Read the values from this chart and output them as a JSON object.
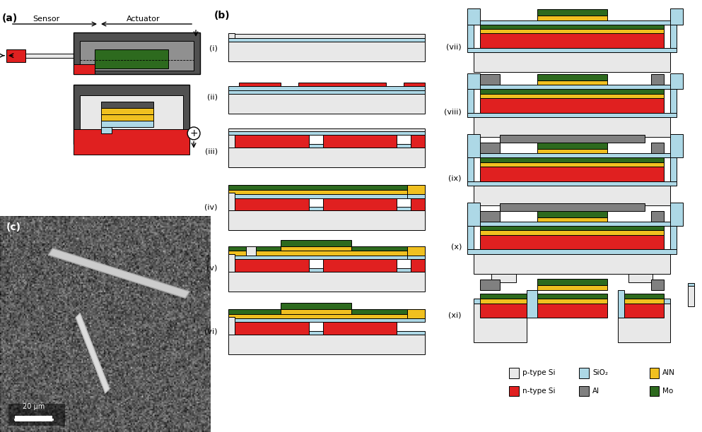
{
  "colors": {
    "p_si": "#e8e8e8",
    "n_si": "#e02020",
    "sio2": "#add8e6",
    "aln": "#f0c020",
    "al": "#808080",
    "mo": "#2d6a1e",
    "white": "#ffffff",
    "outline": "#000000",
    "dark_gray": "#505050",
    "light_blue": "#add8e6",
    "background": "#ffffff"
  },
  "legend": {
    "p_type_si": "p-type Si",
    "n_type_si": "n-type Si",
    "sio2": "SiO₂",
    "al": "Al",
    "aln": "AlN",
    "mo": "Mo"
  },
  "panels": {
    "a_label": "(a)",
    "b_label": "(b)",
    "c_label": "(c)"
  },
  "scale_bar": "20 μm"
}
